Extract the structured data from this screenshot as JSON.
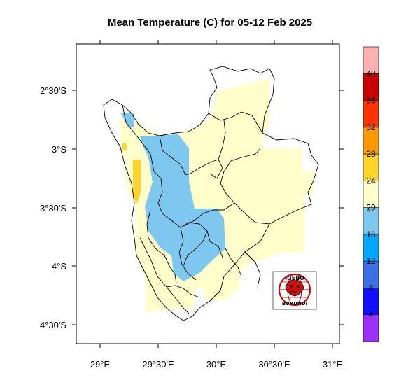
{
  "map": {
    "title": "Mean Temperature (C) for 05-12 Feb 2025",
    "longitude_ticks": [
      "29°E",
      "29°30'E",
      "30°E",
      "30°30'E",
      "31°E"
    ],
    "latitude_ticks": [
      "2°30'S",
      "3°S",
      "3°30'S",
      "4°S",
      "4°30'S"
    ],
    "extent": {
      "lon": [
        28.9,
        31.05
      ],
      "lat": [
        -4.6,
        -2.2
      ]
    },
    "region": "Burundi",
    "temperature_classes_present": [
      "16-20",
      "20-24",
      "24-28"
    ]
  },
  "colorbar": {
    "labels": [
      "4",
      "8",
      "12",
      "16",
      "20",
      "24",
      "28",
      "32",
      "36",
      "40"
    ],
    "colors": [
      "#9b30ff",
      "#1010ff",
      "#3a6fe6",
      "#00a8ff",
      "#7ec8f0",
      "#ffffcc",
      "#ffd42a",
      "#ff9900",
      "#ff3300",
      "#cc0000",
      "#ffb0b0"
    ]
  },
  "logo": {
    "top_text": "IGEBU",
    "bottom_text": "BURUNDI"
  }
}
